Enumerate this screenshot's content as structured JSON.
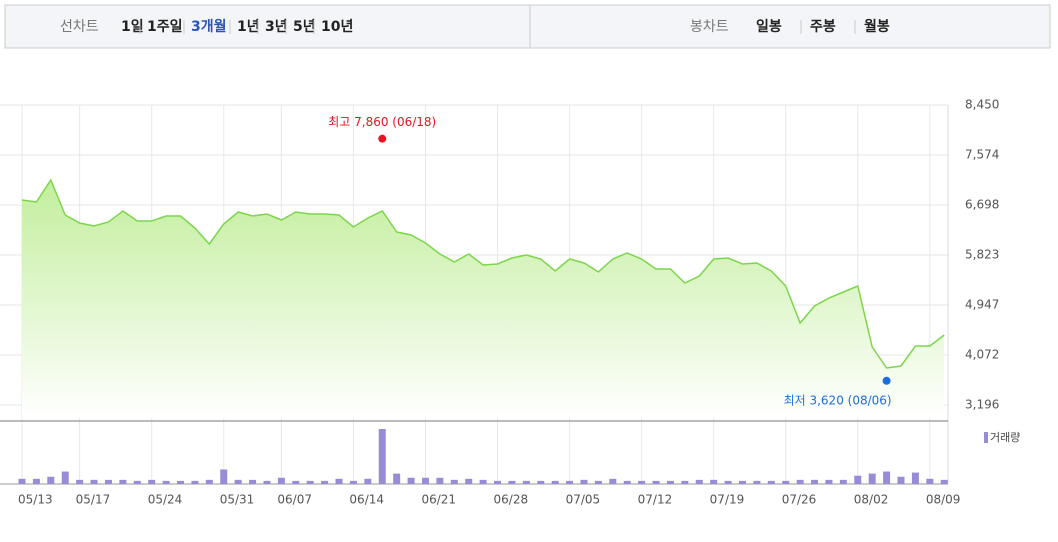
{
  "tabs": {
    "line_label": "선차트",
    "periods": [
      "1일",
      "1주일",
      "3개월",
      "1년",
      "3년",
      "5년",
      "10년"
    ],
    "selected": 2,
    "candle_label": "봉차트",
    "candle_periods": [
      "일봉",
      "주봉",
      "월봉"
    ]
  },
  "chart_data": {
    "type": "area",
    "categories": [
      "05/13",
      null,
      null,
      null,
      "05/17",
      null,
      null,
      null,
      null,
      "05/24",
      null,
      null,
      null,
      null,
      "05/31",
      null,
      null,
      null,
      "06/07",
      null,
      null,
      null,
      null,
      "06/14",
      null,
      null,
      null,
      null,
      "06/21",
      null,
      null,
      null,
      null,
      "06/28",
      null,
      null,
      null,
      null,
      "07/05",
      null,
      null,
      null,
      null,
      "07/12",
      null,
      null,
      null,
      null,
      "07/19",
      null,
      null,
      null,
      null,
      "07/26",
      null,
      null,
      null,
      null,
      "08/02",
      null,
      null,
      null,
      null,
      "08/09",
      null
    ],
    "values": [
      6786,
      6751,
      7137,
      6524,
      6383,
      6331,
      6401,
      6594,
      6419,
      6419,
      6506,
      6506,
      6296,
      6016,
      6366,
      6576,
      6506,
      6541,
      6436,
      6576,
      6541,
      6541,
      6524,
      6314,
      6471,
      6594,
      6226,
      6173,
      6033,
      5841,
      5701,
      5841,
      5648,
      5666,
      5771,
      5823,
      5753,
      5543,
      5753,
      5683,
      5526,
      5753,
      5858,
      5753,
      5578,
      5578,
      5333,
      5455,
      5753,
      5771,
      5666,
      5683,
      5543,
      5280,
      4632,
      4930,
      5070,
      5175,
      5280,
      4212,
      3844,
      3879,
      4229,
      4229,
      4422
    ],
    "color": "#7cd64c",
    "volume": {
      "name": "거래량",
      "color": "#9a8bd6",
      "values": [
        5,
        5,
        7,
        12,
        4,
        4,
        4,
        4,
        3,
        4,
        3,
        3,
        3,
        4,
        14,
        4,
        4,
        3,
        6,
        3,
        3,
        3,
        5,
        3,
        5,
        53,
        10,
        6,
        6,
        6,
        4,
        5,
        4,
        3,
        3,
        3,
        3,
        3,
        3,
        4,
        3,
        5,
        3,
        3,
        3,
        3,
        3,
        4,
        4,
        3,
        3,
        3,
        3,
        3,
        4,
        4,
        4,
        4,
        8,
        10,
        12,
        7,
        11,
        5,
        4
      ]
    },
    "ylim": [
      2968,
      8450
    ],
    "yticks": [
      {
        "value": 3196,
        "label": "3,196"
      },
      {
        "value": 4072,
        "label": "4,072"
      },
      {
        "value": 4947,
        "label": "4,947"
      },
      {
        "value": 5823,
        "label": "5,823"
      },
      {
        "value": 6698,
        "label": "6,698"
      },
      {
        "value": 7574,
        "label": "7,574"
      },
      {
        "value": 8450,
        "label": "8,450"
      }
    ],
    "grid": true,
    "annotations": [
      {
        "label": "최고 7,860 (06/18)",
        "value": 7860,
        "index": 25,
        "color": "#e8141e"
      },
      {
        "label": "최저 3,620 (08/06)",
        "value": 3620,
        "index": 60,
        "color": "#1a6fe0"
      }
    ]
  }
}
